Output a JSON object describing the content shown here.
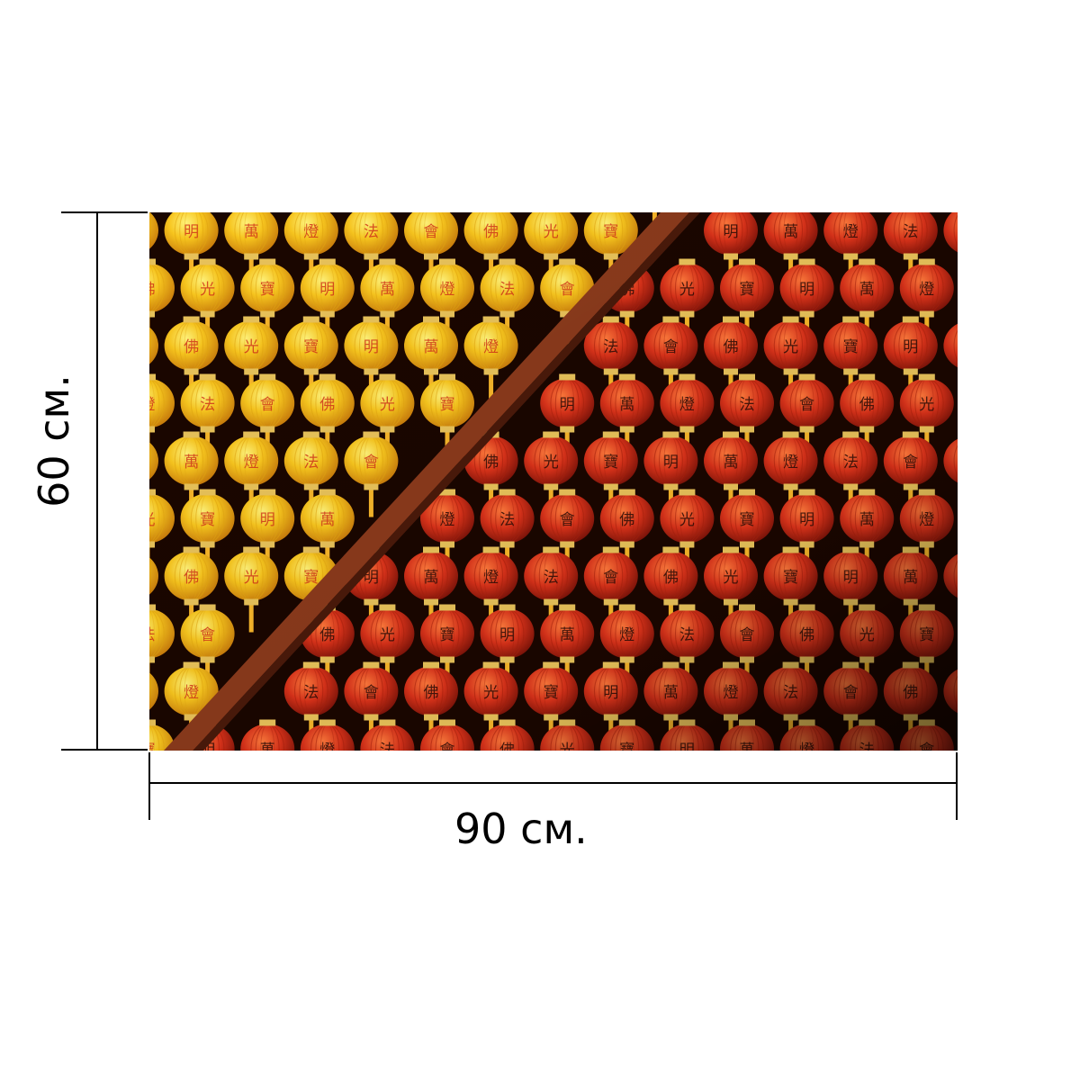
{
  "dimensions": {
    "width_label": "90 см.",
    "height_label": "60 см."
  },
  "photo": {
    "subject": "lanterns",
    "lantern_characters": [
      "萬",
      "燈",
      "法",
      "會",
      "佛",
      "光",
      "寶",
      "明"
    ],
    "colors": {
      "yellow_lantern": "#f7c51e",
      "yellow_lantern_text": "#d2361a",
      "red_lantern": "#d9321a",
      "red_lantern_text": "#2a0c06",
      "tassel": "#f6b52a",
      "beam": "#8a3a1c",
      "background": "#1a0600"
    }
  }
}
